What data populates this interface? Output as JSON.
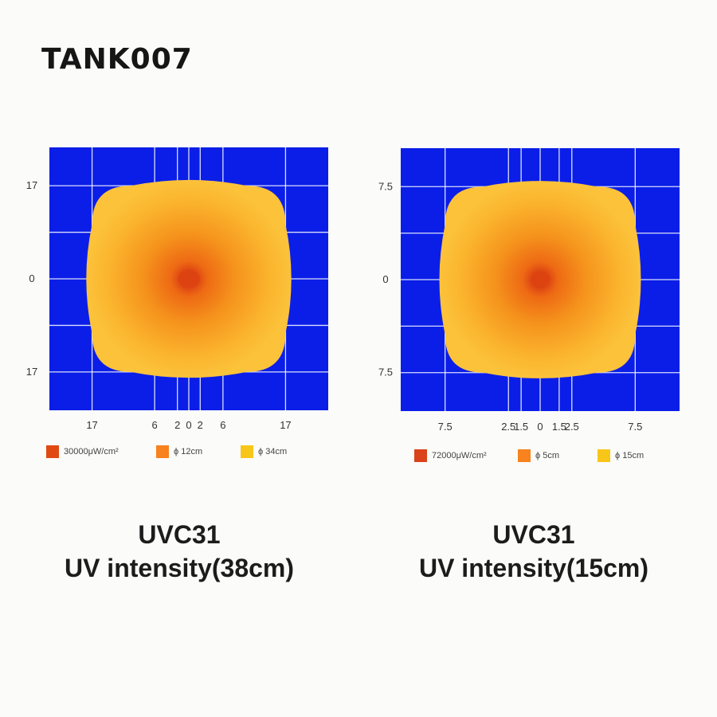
{
  "logo": {
    "text": "TANK007",
    "icon": "tank007-logo"
  },
  "chart_data": [
    {
      "type": "heatmap",
      "title": "UVC31",
      "subtitle": "UV intensity(38cm)",
      "x_tick_labels": [
        "17",
        "6",
        "2",
        "0",
        "2",
        "6",
        "17"
      ],
      "x_tick_values": [
        -17,
        -6,
        -2,
        0,
        2,
        6,
        17
      ],
      "y_tick_labels": [
        "17",
        "0",
        "17"
      ],
      "y_tick_values": [
        17,
        0,
        -17
      ],
      "xlim": [
        -24.5,
        24.5
      ],
      "ylim": [
        -24,
        24
      ],
      "grid": true,
      "legend": [
        {
          "label": "30000μW/cm²",
          "color": "#e04a12"
        },
        {
          "label": "ϕ 12cm",
          "color": "#f7821e"
        },
        {
          "label": "ϕ 34cm",
          "color": "#f8c619"
        }
      ],
      "colors": {
        "background": "#0a1ee8",
        "outer": "#fbc23a",
        "mid": "#f5931c",
        "core": "#dd4412"
      },
      "zones": [
        {
          "label": "30000μW/cm²",
          "diameter": 3
        },
        {
          "label": "ϕ 12cm",
          "diameter": 12
        },
        {
          "label": "ϕ 34cm",
          "diameter": 34
        }
      ],
      "legend_position": "bottom"
    },
    {
      "type": "heatmap",
      "title": "UVC31",
      "subtitle": "UV intensity(15cm)",
      "x_tick_labels": [
        "7.5",
        "2.5",
        "1.5",
        "0",
        "1.5",
        "2.5",
        "7.5"
      ],
      "x_tick_values": [
        -7.5,
        -2.5,
        -1.5,
        0,
        1.5,
        2.5,
        7.5
      ],
      "y_tick_labels": [
        "7.5",
        "0",
        "7.5"
      ],
      "y_tick_values": [
        7.5,
        0,
        -7.5
      ],
      "xlim": [
        -11,
        11
      ],
      "ylim": [
        -10.6,
        10.6
      ],
      "grid": true,
      "legend": [
        {
          "label": "72000μW/cm²",
          "color": "#d9421a"
        },
        {
          "label": "ϕ 5cm",
          "color": "#f7821e"
        },
        {
          "label": "ϕ 15cm",
          "color": "#f8c619"
        }
      ],
      "colors": {
        "background": "#0a1ee8",
        "outer": "#fbc23a",
        "mid": "#f5931c",
        "core": "#dd4412"
      },
      "zones": [
        {
          "label": "72000μW/cm²",
          "diameter": 1.2
        },
        {
          "label": "ϕ 5cm",
          "diameter": 5
        },
        {
          "label": "ϕ 15cm",
          "diameter": 15
        }
      ],
      "legend_position": "bottom"
    }
  ]
}
